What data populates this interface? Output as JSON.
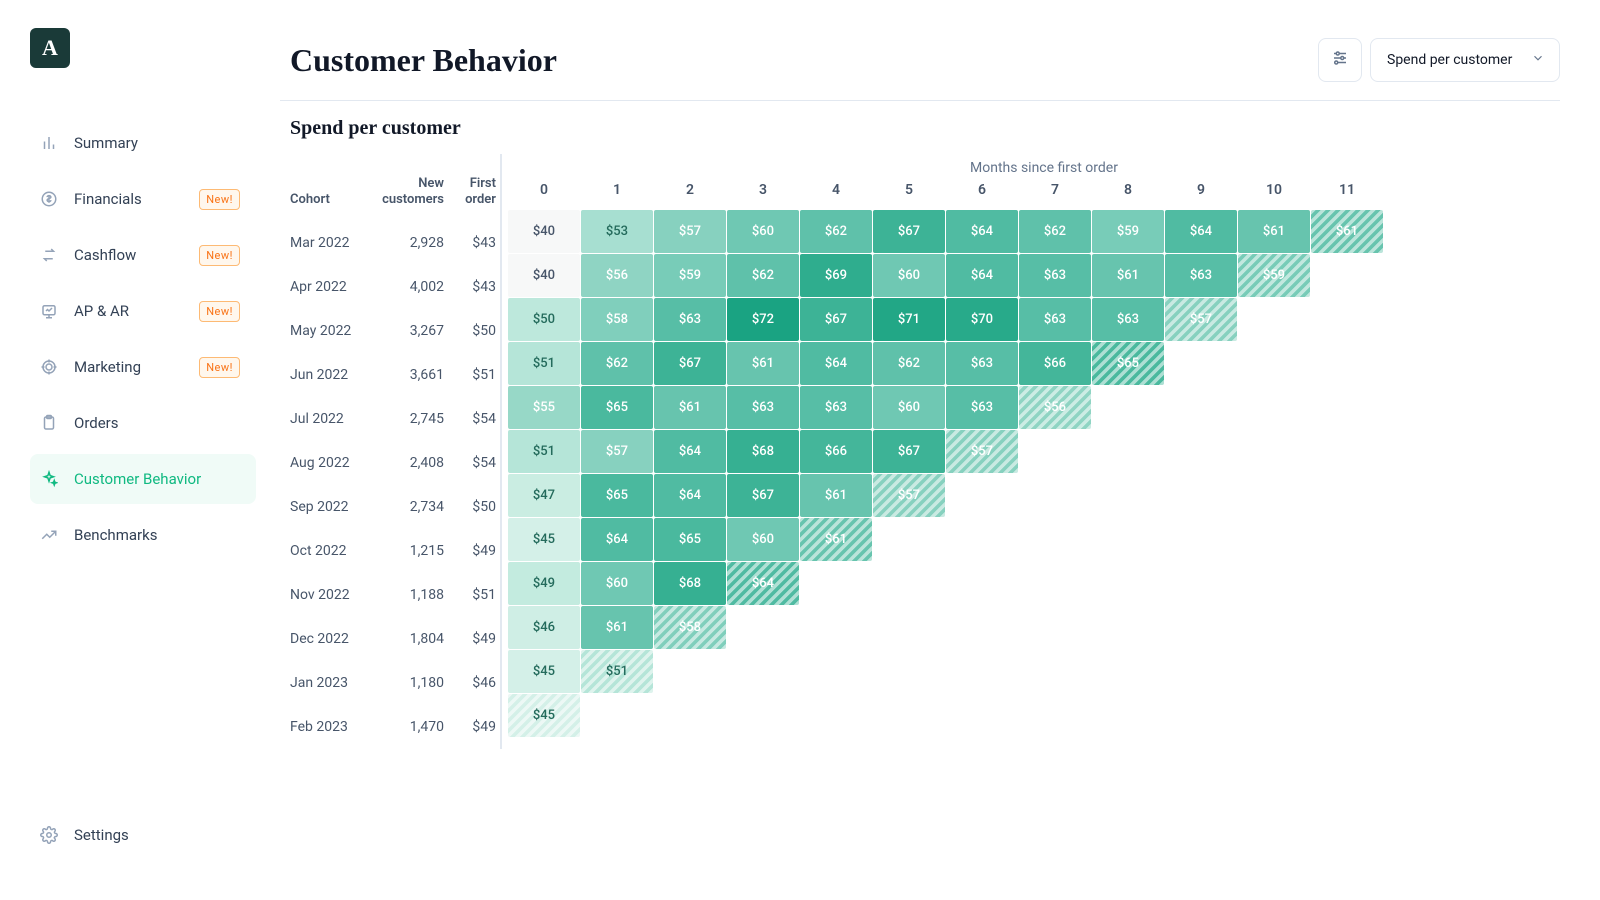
{
  "brand": {
    "initial": "A"
  },
  "sidebar": {
    "items": [
      {
        "label": "Summary",
        "new": false,
        "active": false,
        "icon": "bar"
      },
      {
        "label": "Financials",
        "new": true,
        "active": false,
        "icon": "dollar"
      },
      {
        "label": "Cashflow",
        "new": true,
        "active": false,
        "icon": "swap"
      },
      {
        "label": "AP & AR",
        "new": true,
        "active": false,
        "icon": "present"
      },
      {
        "label": "Marketing",
        "new": true,
        "active": false,
        "icon": "target"
      },
      {
        "label": "Orders",
        "new": false,
        "active": false,
        "icon": "clip"
      },
      {
        "label": "Customer Behavior",
        "new": false,
        "active": true,
        "icon": "sparkle"
      },
      {
        "label": "Benchmarks",
        "new": false,
        "active": false,
        "icon": "trend"
      }
    ],
    "settings_label": "Settings",
    "new_badge_text": "New!"
  },
  "header": {
    "title": "Customer Behavior",
    "select_label": "Spend per customer"
  },
  "section_title": "Spend per customer",
  "cohort_table": {
    "type": "heatmap",
    "left_headers": {
      "cohort": "Cohort",
      "new_customers": "New customers",
      "first_order": "First order"
    },
    "months_caption": "Months since first order",
    "month_headers": [
      "0",
      "1",
      "2",
      "3",
      "4",
      "5",
      "6",
      "7",
      "8",
      "9",
      "10",
      "11"
    ],
    "rows": [
      {
        "cohort": "Mar 2022",
        "new_customers": "2,928",
        "first_order": "$43",
        "cells": [
          {
            "v": "$40",
            "bg": "#f7f8f8",
            "fg": "#475569",
            "hatched": false
          },
          {
            "v": "$53",
            "bg": "#a7dfd1",
            "fg": "#246b5c",
            "hatched": false
          },
          {
            "v": "$57",
            "bg": "#87d1bf",
            "fg": "#ffffff",
            "hatched": false
          },
          {
            "v": "$60",
            "bg": "#6fc8b3",
            "fg": "#ffffff",
            "hatched": false
          },
          {
            "v": "$62",
            "bg": "#5fc1aa",
            "fg": "#ffffff",
            "hatched": false
          },
          {
            "v": "$67",
            "bg": "#3db396",
            "fg": "#ffffff",
            "hatched": false
          },
          {
            "v": "$64",
            "bg": "#50bba2",
            "fg": "#ffffff",
            "hatched": false
          },
          {
            "v": "$62",
            "bg": "#5fc1aa",
            "fg": "#ffffff",
            "hatched": false
          },
          {
            "v": "$59",
            "bg": "#78ccb8",
            "fg": "#ffffff",
            "hatched": false
          },
          {
            "v": "$64",
            "bg": "#50bba2",
            "fg": "#ffffff",
            "hatched": false
          },
          {
            "v": "$61",
            "bg": "#67c4ae",
            "fg": "#ffffff",
            "hatched": false
          },
          {
            "v": "$61",
            "bg": "#67c4ae",
            "fg": "#ffffff",
            "hatched": true
          }
        ]
      },
      {
        "cohort": "Apr 2022",
        "new_customers": "4,002",
        "first_order": "$43",
        "cells": [
          {
            "v": "$40",
            "bg": "#f7f8f8",
            "fg": "#475569",
            "hatched": false
          },
          {
            "v": "$56",
            "bg": "#8fd4c3",
            "fg": "#ffffff",
            "hatched": false
          },
          {
            "v": "$59",
            "bg": "#78ccb8",
            "fg": "#ffffff",
            "hatched": false
          },
          {
            "v": "$62",
            "bg": "#5fc1aa",
            "fg": "#ffffff",
            "hatched": false
          },
          {
            "v": "$69",
            "bg": "#2fad8e",
            "fg": "#ffffff",
            "hatched": false
          },
          {
            "v": "$60",
            "bg": "#6fc8b3",
            "fg": "#ffffff",
            "hatched": false
          },
          {
            "v": "$64",
            "bg": "#50bba2",
            "fg": "#ffffff",
            "hatched": false
          },
          {
            "v": "$63",
            "bg": "#57bea6",
            "fg": "#ffffff",
            "hatched": false
          },
          {
            "v": "$61",
            "bg": "#67c4ae",
            "fg": "#ffffff",
            "hatched": false
          },
          {
            "v": "$63",
            "bg": "#57bea6",
            "fg": "#ffffff",
            "hatched": false
          },
          {
            "v": "$59",
            "bg": "#78ccb8",
            "fg": "#ffffff",
            "hatched": true
          }
        ]
      },
      {
        "cohort": "May 2022",
        "new_customers": "3,267",
        "first_order": "$50",
        "cells": [
          {
            "v": "$50",
            "bg": "#bde8dc",
            "fg": "#246b5c",
            "hatched": false
          },
          {
            "v": "$58",
            "bg": "#80cfbc",
            "fg": "#ffffff",
            "hatched": false
          },
          {
            "v": "$63",
            "bg": "#57bea6",
            "fg": "#ffffff",
            "hatched": false
          },
          {
            "v": "$72",
            "bg": "#1aa382",
            "fg": "#ffffff",
            "hatched": false
          },
          {
            "v": "$67",
            "bg": "#3db396",
            "fg": "#ffffff",
            "hatched": false
          },
          {
            "v": "$71",
            "bg": "#22a786",
            "fg": "#ffffff",
            "hatched": false
          },
          {
            "v": "$70",
            "bg": "#28aa8a",
            "fg": "#ffffff",
            "hatched": false
          },
          {
            "v": "$63",
            "bg": "#57bea6",
            "fg": "#ffffff",
            "hatched": false
          },
          {
            "v": "$63",
            "bg": "#57bea6",
            "fg": "#ffffff",
            "hatched": false
          },
          {
            "v": "$57",
            "bg": "#87d1bf",
            "fg": "#ffffff",
            "hatched": true
          }
        ]
      },
      {
        "cohort": "Jun 2022",
        "new_customers": "3,661",
        "first_order": "$51",
        "cells": [
          {
            "v": "$51",
            "bg": "#b5e5d8",
            "fg": "#246b5c",
            "hatched": false
          },
          {
            "v": "$62",
            "bg": "#5fc1aa",
            "fg": "#ffffff",
            "hatched": false
          },
          {
            "v": "$67",
            "bg": "#3db396",
            "fg": "#ffffff",
            "hatched": false
          },
          {
            "v": "$61",
            "bg": "#67c4ae",
            "fg": "#ffffff",
            "hatched": false
          },
          {
            "v": "$64",
            "bg": "#50bba2",
            "fg": "#ffffff",
            "hatched": false
          },
          {
            "v": "$62",
            "bg": "#5fc1aa",
            "fg": "#ffffff",
            "hatched": false
          },
          {
            "v": "$63",
            "bg": "#57bea6",
            "fg": "#ffffff",
            "hatched": false
          },
          {
            "v": "$66",
            "bg": "#44b69a",
            "fg": "#ffffff",
            "hatched": false
          },
          {
            "v": "$65",
            "bg": "#4ab99e",
            "fg": "#ffffff",
            "hatched": true
          }
        ]
      },
      {
        "cohort": "Jul 2022",
        "new_customers": "2,745",
        "first_order": "$54",
        "cells": [
          {
            "v": "$55",
            "bg": "#97d8c7",
            "fg": "#ffffff",
            "hatched": false
          },
          {
            "v": "$65",
            "bg": "#4ab99e",
            "fg": "#ffffff",
            "hatched": false
          },
          {
            "v": "$61",
            "bg": "#67c4ae",
            "fg": "#ffffff",
            "hatched": false
          },
          {
            "v": "$63",
            "bg": "#57bea6",
            "fg": "#ffffff",
            "hatched": false
          },
          {
            "v": "$63",
            "bg": "#57bea6",
            "fg": "#ffffff",
            "hatched": false
          },
          {
            "v": "$60",
            "bg": "#6fc8b3",
            "fg": "#ffffff",
            "hatched": false
          },
          {
            "v": "$63",
            "bg": "#57bea6",
            "fg": "#ffffff",
            "hatched": false
          },
          {
            "v": "$56",
            "bg": "#8fd4c3",
            "fg": "#ffffff",
            "hatched": true
          }
        ]
      },
      {
        "cohort": "Aug 2022",
        "new_customers": "2,408",
        "first_order": "$54",
        "cells": [
          {
            "v": "$51",
            "bg": "#b5e5d8",
            "fg": "#246b5c",
            "hatched": false
          },
          {
            "v": "$57",
            "bg": "#87d1bf",
            "fg": "#ffffff",
            "hatched": false
          },
          {
            "v": "$64",
            "bg": "#50bba2",
            "fg": "#ffffff",
            "hatched": false
          },
          {
            "v": "$68",
            "bg": "#36b092",
            "fg": "#ffffff",
            "hatched": false
          },
          {
            "v": "$66",
            "bg": "#44b69a",
            "fg": "#ffffff",
            "hatched": false
          },
          {
            "v": "$67",
            "bg": "#3db396",
            "fg": "#ffffff",
            "hatched": false
          },
          {
            "v": "$57",
            "bg": "#87d1bf",
            "fg": "#ffffff",
            "hatched": true
          }
        ]
      },
      {
        "cohort": "Sep 2022",
        "new_customers": "2,734",
        "first_order": "$50",
        "cells": [
          {
            "v": "$47",
            "bg": "#caede2",
            "fg": "#246b5c",
            "hatched": false
          },
          {
            "v": "$65",
            "bg": "#4ab99e",
            "fg": "#ffffff",
            "hatched": false
          },
          {
            "v": "$64",
            "bg": "#50bba2",
            "fg": "#ffffff",
            "hatched": false
          },
          {
            "v": "$67",
            "bg": "#3db396",
            "fg": "#ffffff",
            "hatched": false
          },
          {
            "v": "$61",
            "bg": "#67c4ae",
            "fg": "#ffffff",
            "hatched": false
          },
          {
            "v": "$57",
            "bg": "#87d1bf",
            "fg": "#ffffff",
            "hatched": true
          }
        ]
      },
      {
        "cohort": "Oct 2022",
        "new_customers": "1,215",
        "first_order": "$49",
        "cells": [
          {
            "v": "$45",
            "bg": "#d4f0e8",
            "fg": "#246b5c",
            "hatched": false
          },
          {
            "v": "$64",
            "bg": "#50bba2",
            "fg": "#ffffff",
            "hatched": false
          },
          {
            "v": "$65",
            "bg": "#4ab99e",
            "fg": "#ffffff",
            "hatched": false
          },
          {
            "v": "$60",
            "bg": "#6fc8b3",
            "fg": "#ffffff",
            "hatched": false
          },
          {
            "v": "$61",
            "bg": "#67c4ae",
            "fg": "#ffffff",
            "hatched": true
          }
        ]
      },
      {
        "cohort": "Nov 2022",
        "new_customers": "1,188",
        "first_order": "$51",
        "cells": [
          {
            "v": "$49",
            "bg": "#c3ebdf",
            "fg": "#246b5c",
            "hatched": false
          },
          {
            "v": "$60",
            "bg": "#6fc8b3",
            "fg": "#ffffff",
            "hatched": false
          },
          {
            "v": "$68",
            "bg": "#36b092",
            "fg": "#ffffff",
            "hatched": false
          },
          {
            "v": "$64",
            "bg": "#50bba2",
            "fg": "#ffffff",
            "hatched": true
          }
        ]
      },
      {
        "cohort": "Dec 2022",
        "new_customers": "1,804",
        "first_order": "$49",
        "cells": [
          {
            "v": "$46",
            "bg": "#cfeee5",
            "fg": "#246b5c",
            "hatched": false
          },
          {
            "v": "$61",
            "bg": "#67c4ae",
            "fg": "#ffffff",
            "hatched": false
          },
          {
            "v": "$58",
            "bg": "#80cfbc",
            "fg": "#ffffff",
            "hatched": true
          }
        ]
      },
      {
        "cohort": "Jan 2023",
        "new_customers": "1,180",
        "first_order": "$46",
        "cells": [
          {
            "v": "$45",
            "bg": "#d4f0e8",
            "fg": "#246b5c",
            "hatched": false
          },
          {
            "v": "$51",
            "bg": "#b5e5d8",
            "fg": "#246b5c",
            "hatched": true
          }
        ]
      },
      {
        "cohort": "Feb 2023",
        "new_customers": "1,470",
        "first_order": "$49",
        "cells": [
          {
            "v": "$45",
            "bg": "#d4f0e8",
            "fg": "#246b5c",
            "hatched": true
          }
        ]
      }
    ]
  }
}
